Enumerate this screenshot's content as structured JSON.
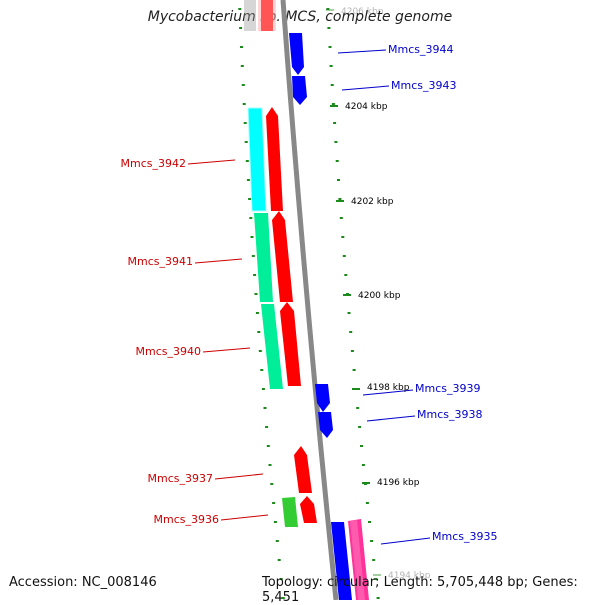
{
  "title": "Mycobacterium sp. MCS, complete genome",
  "footer": {
    "accession": "Accession: NC_008146",
    "summary": "Topology: circular; Length: 5,705,448 bp; Genes: 5,451"
  },
  "ticks": [
    {
      "label": "4206 kbp",
      "faded": true
    },
    {
      "label": "4204 kbp",
      "faded": false
    },
    {
      "label": "4202 kbp",
      "faded": false
    },
    {
      "label": "4200 kbp",
      "faded": false
    },
    {
      "label": "4198 kbp",
      "faded": false
    },
    {
      "label": "4196 kbp",
      "faded": false
    },
    {
      "label": "4194 kbp",
      "faded": true
    }
  ],
  "genes_minus": [
    {
      "name": "Mmcs_3942",
      "color": "#ff0000"
    },
    {
      "name": "Mmcs_3941",
      "color": "#ff0000"
    },
    {
      "name": "Mmcs_3940",
      "color": "#ff0000"
    },
    {
      "name": "Mmcs_3937",
      "color": "#ff0000"
    },
    {
      "name": "Mmcs_3936",
      "color": "#ff0000"
    }
  ],
  "genes_plus": [
    {
      "name": "Mmcs_3944",
      "color": "#0000ff"
    },
    {
      "name": "Mmcs_3943",
      "color": "#0000ff"
    },
    {
      "name": "Mmcs_3939",
      "color": "#0000ff"
    },
    {
      "name": "Mmcs_3938",
      "color": "#0000ff"
    },
    {
      "name": "Mmcs_3935",
      "color": "#0000ff"
    }
  ],
  "colors": {
    "minus_label": "#cc0000",
    "plus_label": "#0000cc",
    "backbone": "#888888",
    "ticks": "#1a8a1a",
    "cds_cyan": "#00ffff",
    "cds_teal": "#00ee99",
    "cds_green": "#33cc33",
    "cds_pink": "#ff3399"
  }
}
